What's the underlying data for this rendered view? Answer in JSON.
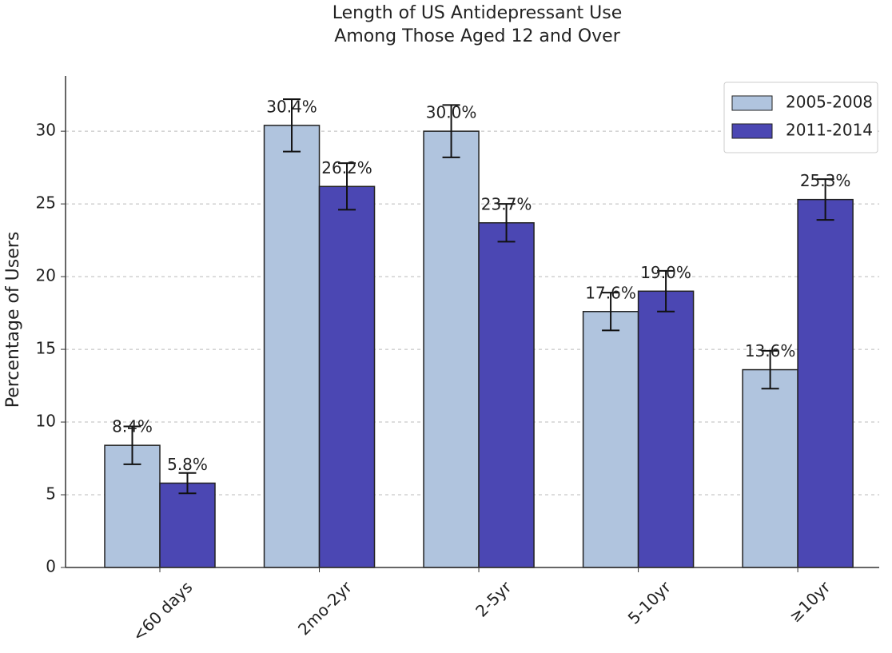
{
  "chart_data": {
    "type": "bar",
    "title": [
      "Length of US Antidepressant Use",
      "Among Those Aged 12 and Over"
    ],
    "y_label": "Percentage of Users",
    "categories": [
      "<60 days",
      "2mo-2yr",
      "2-5yr",
      "5-10yr",
      "≥10yr"
    ],
    "series": [
      {
        "name": "2005-2008",
        "color": "#b0c4de",
        "values": [
          8.4,
          30.4,
          30.0,
          17.6,
          13.6
        ],
        "value_labels": [
          "8.4%",
          "30.4%",
          "30.0%",
          "17.6%",
          "13.6%"
        ],
        "errors": [
          1.3,
          1.8,
          1.8,
          1.3,
          1.3
        ]
      },
      {
        "name": "2011-2014",
        "color": "#4b47b3",
        "values": [
          5.8,
          26.2,
          23.7,
          19.0,
          25.3
        ],
        "value_labels": [
          "5.8%",
          "26.2%",
          "23.7%",
          "19.0%",
          "25.3%"
        ],
        "errors": [
          0.7,
          1.6,
          1.3,
          1.4,
          1.4
        ]
      }
    ],
    "ylim": [
      0,
      33.8
    ],
    "yticks": [
      0,
      5,
      10,
      15,
      20,
      25,
      30
    ],
    "grid": true,
    "legend": "upper right"
  }
}
